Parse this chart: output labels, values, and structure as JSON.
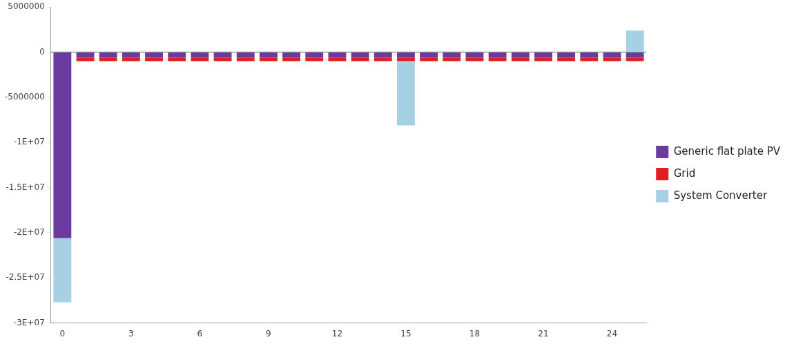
{
  "chart_data": {
    "type": "bar",
    "stacked": true,
    "categories": [
      "0",
      null,
      null,
      "3",
      null,
      null,
      "6",
      null,
      null,
      "9",
      null,
      null,
      "12",
      null,
      null,
      "15",
      null,
      null,
      "18",
      null,
      null,
      "21",
      null,
      null,
      "24",
      null
    ],
    "series": [
      {
        "name": "Generic flat plate PV",
        "color": "#6a3a9c",
        "values": [
          -20600000,
          -600000,
          -600000,
          -600000,
          -600000,
          -600000,
          -600000,
          -600000,
          -600000,
          -600000,
          -600000,
          -600000,
          -600000,
          -600000,
          -600000,
          -600000,
          -600000,
          -600000,
          -600000,
          -600000,
          -600000,
          -600000,
          -600000,
          -600000,
          -600000,
          -600000
        ]
      },
      {
        "name": "Grid",
        "color": "#e02020",
        "values": [
          0,
          -400000,
          -400000,
          -400000,
          -400000,
          -400000,
          -400000,
          -400000,
          -400000,
          -400000,
          -400000,
          -400000,
          -400000,
          -400000,
          -400000,
          -400000,
          -400000,
          -400000,
          -400000,
          -400000,
          -400000,
          -400000,
          -400000,
          -400000,
          -400000,
          -400000
        ]
      },
      {
        "name": "System Converter",
        "color": "#a6d0e4",
        "values": [
          -7100000,
          0,
          0,
          0,
          0,
          0,
          0,
          0,
          0,
          0,
          0,
          0,
          0,
          0,
          0,
          -7100000,
          0,
          0,
          0,
          0,
          0,
          0,
          0,
          0,
          0,
          2400000
        ]
      }
    ],
    "ylim": [
      -30000000,
      5000000
    ],
    "yticks": [
      5000000,
      0,
      -5000000,
      {
        "value": -10000000,
        "label": "-1E+07"
      },
      {
        "value": -15000000,
        "label": "-1.5E+07"
      },
      {
        "value": -20000000,
        "label": "-2E+07"
      },
      {
        "value": -25000000,
        "label": "-2.5E+07"
      },
      {
        "value": -30000000,
        "label": "-3E+07"
      }
    ],
    "ref_lines": [
      {
        "axis": "y",
        "value": 0,
        "color": "#999999"
      }
    ],
    "grid": false,
    "legend": "right"
  }
}
